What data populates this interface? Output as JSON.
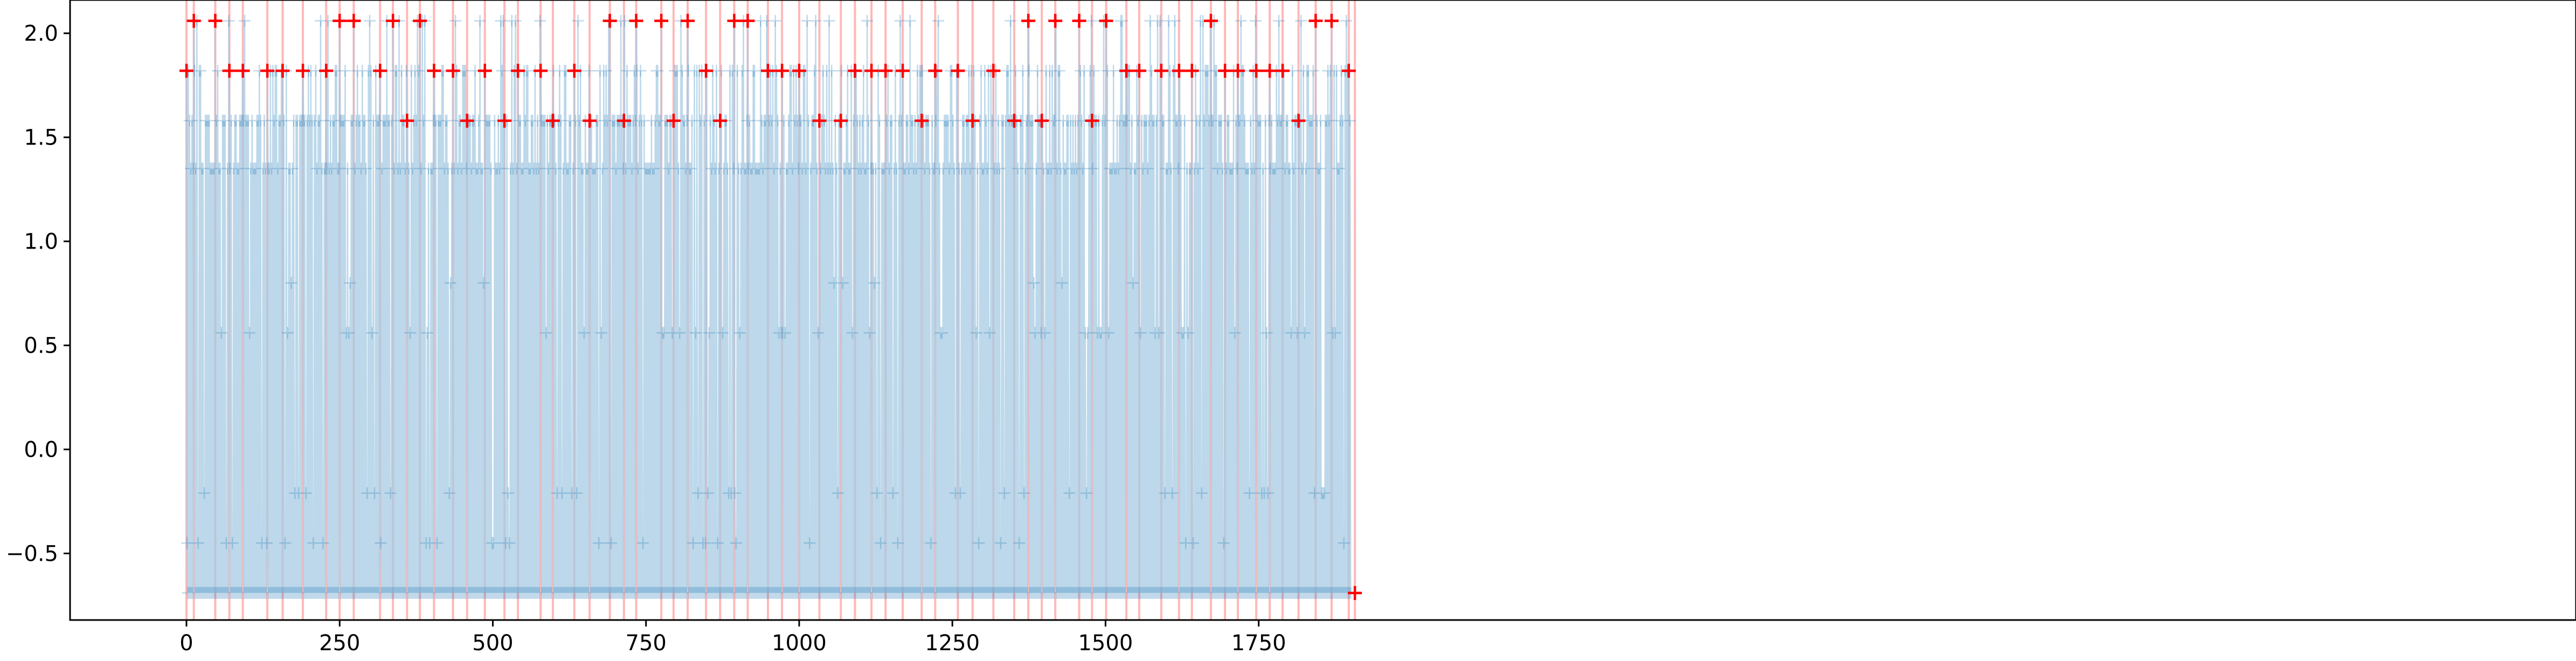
{
  "chart_data": {
    "type": "line",
    "title": "",
    "xlabel": "",
    "ylabel": "",
    "xlim": [
      -190,
      3900
    ],
    "ylim": [
      -0.82,
      2.16
    ],
    "grid": false,
    "legend": "none",
    "x_ticks": [
      0,
      250,
      500,
      750,
      1000,
      1250,
      1500,
      1750
    ],
    "x_tick_labels": [
      "0",
      "250",
      "500",
      "750",
      "1000",
      "1250",
      "1500",
      "1750"
    ],
    "y_ticks": [
      -0.5,
      0.0,
      0.5,
      1.0,
      1.5,
      2.0
    ],
    "y_tick_labels": [
      "−0.5",
      "0.0",
      "0.5",
      "1.0",
      "1.5",
      "2.0"
    ],
    "colors": {
      "series_line": "#a6cbe3",
      "series_marker": "#1f77b4",
      "highlight_marker": "#ff0000",
      "vertical_line": "#ff0000"
    },
    "series": [
      {
        "marker": "+",
        "x_range": [
          0,
          1900
        ],
        "levels": [
          -0.69,
          -0.45,
          -0.21,
          0.56,
          0.8,
          1.35,
          1.58,
          1.82,
          2.06
        ],
        "baseline": -0.69
      }
    ],
    "highlight_points": [
      {
        "x": 0,
        "y": 1.82
      },
      {
        "x": 12,
        "y": 2.06
      },
      {
        "x": 47,
        "y": 2.06
      },
      {
        "x": 70,
        "y": 1.82
      },
      {
        "x": 92,
        "y": 1.82
      },
      {
        "x": 132,
        "y": 1.82
      },
      {
        "x": 157,
        "y": 1.82
      },
      {
        "x": 190,
        "y": 1.82
      },
      {
        "x": 228,
        "y": 1.82
      },
      {
        "x": 250,
        "y": 2.06
      },
      {
        "x": 273,
        "y": 2.06
      },
      {
        "x": 316,
        "y": 1.82
      },
      {
        "x": 337,
        "y": 2.06
      },
      {
        "x": 360,
        "y": 1.58
      },
      {
        "x": 381,
        "y": 2.06
      },
      {
        "x": 404,
        "y": 1.82
      },
      {
        "x": 435,
        "y": 1.82
      },
      {
        "x": 458,
        "y": 1.58
      },
      {
        "x": 487,
        "y": 1.82
      },
      {
        "x": 519,
        "y": 1.58
      },
      {
        "x": 541,
        "y": 1.82
      },
      {
        "x": 578,
        "y": 1.82
      },
      {
        "x": 598,
        "y": 1.58
      },
      {
        "x": 633,
        "y": 1.82
      },
      {
        "x": 658,
        "y": 1.58
      },
      {
        "x": 691,
        "y": 2.06
      },
      {
        "x": 714,
        "y": 1.58
      },
      {
        "x": 734,
        "y": 2.06
      },
      {
        "x": 775,
        "y": 2.06
      },
      {
        "x": 795,
        "y": 1.58
      },
      {
        "x": 818,
        "y": 2.06
      },
      {
        "x": 848,
        "y": 1.82
      },
      {
        "x": 871,
        "y": 1.58
      },
      {
        "x": 894,
        "y": 2.06
      },
      {
        "x": 916,
        "y": 2.06
      },
      {
        "x": 949,
        "y": 1.82
      },
      {
        "x": 972,
        "y": 1.82
      },
      {
        "x": 1000,
        "y": 1.82
      },
      {
        "x": 1033,
        "y": 1.58
      },
      {
        "x": 1068,
        "y": 1.58
      },
      {
        "x": 1091,
        "y": 1.82
      },
      {
        "x": 1118,
        "y": 1.82
      },
      {
        "x": 1141,
        "y": 1.82
      },
      {
        "x": 1169,
        "y": 1.82
      },
      {
        "x": 1200,
        "y": 1.58
      },
      {
        "x": 1222,
        "y": 1.82
      },
      {
        "x": 1259,
        "y": 1.82
      },
      {
        "x": 1283,
        "y": 1.58
      },
      {
        "x": 1317,
        "y": 1.82
      },
      {
        "x": 1351,
        "y": 1.58
      },
      {
        "x": 1374,
        "y": 2.06
      },
      {
        "x": 1396,
        "y": 1.58
      },
      {
        "x": 1418,
        "y": 2.06
      },
      {
        "x": 1457,
        "y": 2.06
      },
      {
        "x": 1478,
        "y": 1.58
      },
      {
        "x": 1501,
        "y": 2.06
      },
      {
        "x": 1534,
        "y": 1.82
      },
      {
        "x": 1555,
        "y": 1.82
      },
      {
        "x": 1591,
        "y": 1.82
      },
      {
        "x": 1620,
        "y": 1.82
      },
      {
        "x": 1641,
        "y": 1.82
      },
      {
        "x": 1672,
        "y": 2.06
      },
      {
        "x": 1695,
        "y": 1.82
      },
      {
        "x": 1716,
        "y": 1.82
      },
      {
        "x": 1746,
        "y": 1.82
      },
      {
        "x": 1768,
        "y": 1.82
      },
      {
        "x": 1789,
        "y": 1.82
      },
      {
        "x": 1815,
        "y": 1.58
      },
      {
        "x": 1843,
        "y": 2.06
      },
      {
        "x": 1869,
        "y": 2.06
      },
      {
        "x": 1897,
        "y": 1.82
      },
      {
        "x": 1907,
        "y": -0.69
      }
    ]
  }
}
